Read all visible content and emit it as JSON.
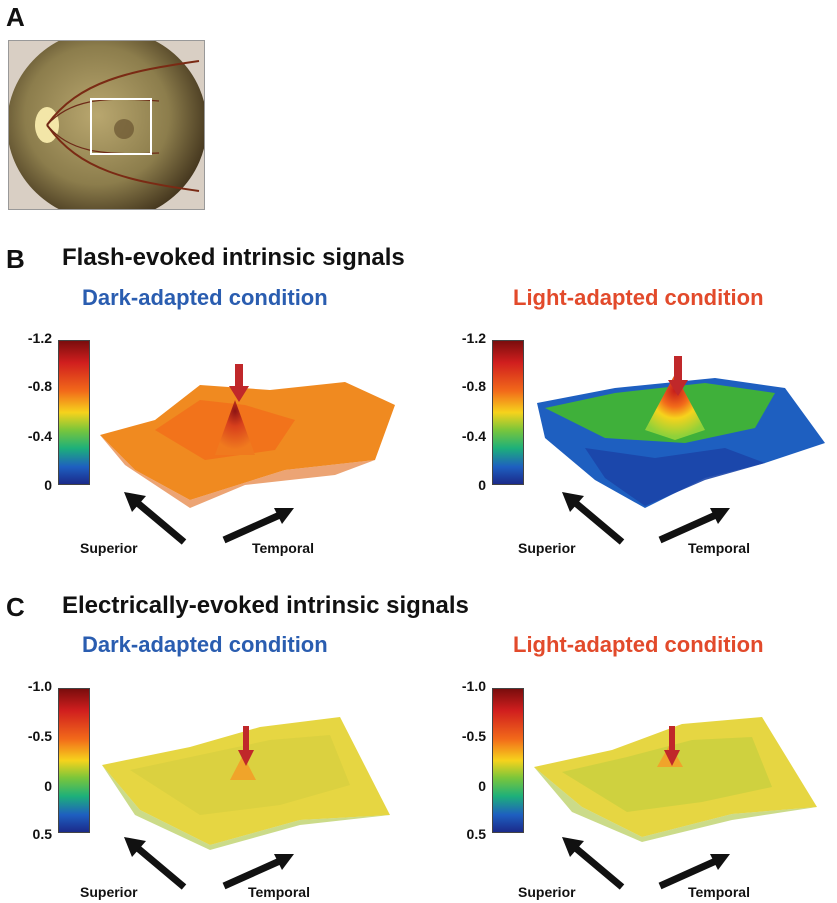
{
  "panel_a": {
    "letter": "A"
  },
  "panel_b": {
    "letter": "B",
    "title": "Flash-evoked intrinsic signals",
    "dark_label": "Dark-adapted condition",
    "light_label": "Light-adapted condition",
    "colorbar_ticks": [
      "-1.2",
      "-0.8",
      "-0.4",
      "0"
    ]
  },
  "panel_c": {
    "letter": "C",
    "title": "Electrically-evoked intrinsic signals",
    "dark_label": "Dark-adapted condition",
    "light_label": "Light-adapted condition",
    "colorbar_ticks": [
      "-1.0",
      "-0.5",
      "0",
      "0.5"
    ]
  },
  "directions": {
    "superior": "Superior",
    "temporal": "Temporal"
  },
  "colors": {
    "dark_condition": "#2a5db0",
    "light_condition": "#e24a2b",
    "arrow": "#c0282a"
  }
}
